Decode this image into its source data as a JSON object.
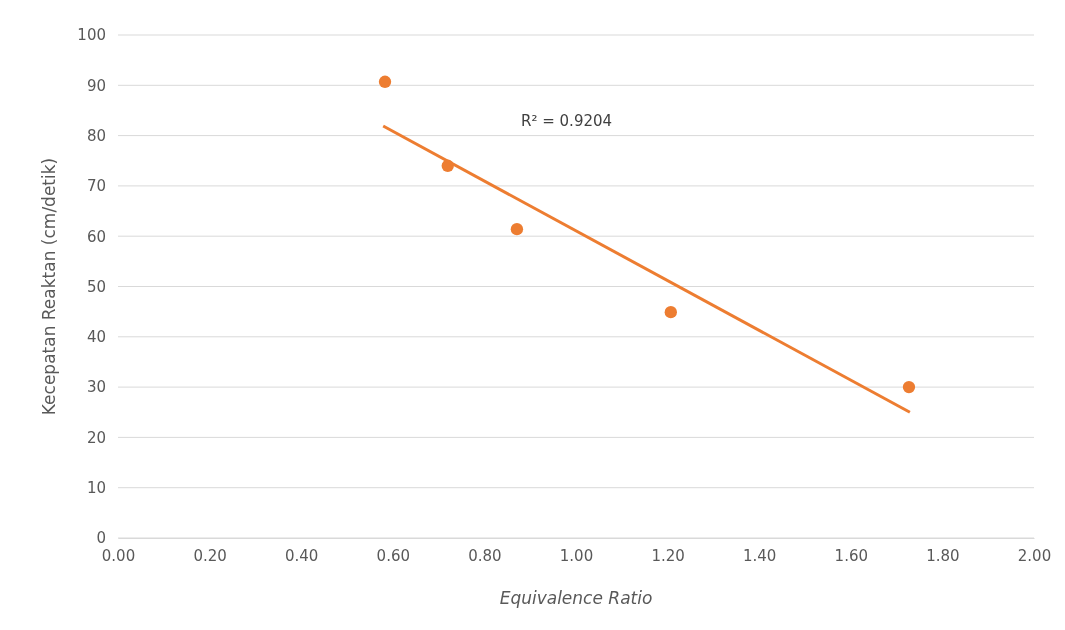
{
  "chart_data": {
    "type": "scatter",
    "xlabel": "Equivalence Ratio",
    "ylabel": "Kecepatan Reaktan (cm/detik)",
    "x": [
      0.583,
      0.72,
      0.871,
      1.207,
      1.727
    ],
    "series": [
      {
        "color": "#ed7d31",
        "marker": "circle",
        "values": [
          90.7,
          74.0,
          61.4,
          44.9,
          30.0
        ]
      },
      {
        "type": "line",
        "color": "#ed7d31",
        "x": [
          0.579,
          1.729
        ],
        "values": [
          81.9,
          25.0
        ]
      }
    ],
    "annotations": [
      "R² = 0.9204"
    ],
    "xlim": [
      0,
      2
    ],
    "xticks": [
      {
        "value": 0,
        "label": "0.00"
      },
      {
        "value": 0.2,
        "label": "0.20"
      },
      {
        "value": 0.4,
        "label": "0.40"
      },
      {
        "value": 0.6,
        "label": "0.60"
      },
      {
        "value": 0.8,
        "label": "0.80"
      },
      {
        "value": 1,
        "label": "1.00"
      },
      {
        "value": 1.2,
        "label": "1.20"
      },
      {
        "value": 1.4,
        "label": "1.40"
      },
      {
        "value": 1.6,
        "label": "1.60"
      },
      {
        "value": 1.8,
        "label": "1.80"
      },
      {
        "value": 2,
        "label": "2.00"
      }
    ],
    "ylim": [
      0,
      100
    ],
    "yticks": [
      0,
      10,
      20,
      30,
      40,
      50,
      60,
      70,
      80,
      90,
      100
    ],
    "grid": "y"
  }
}
